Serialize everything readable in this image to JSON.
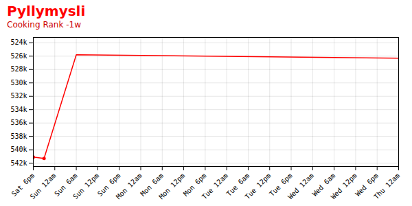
{
  "chart_data": {
    "type": "line",
    "title": "Pyllymysli",
    "subtitle": "Cooking Rank -1w",
    "series": [
      {
        "type": "line",
        "color": "#ff0000",
        "x": [
          0,
          0.5,
          2,
          17
        ],
        "values": [
          541100,
          541300,
          525800,
          526300
        ]
      },
      {
        "type": "scatter",
        "marker": "o",
        "color": "#ff0000",
        "x": [
          0,
          0.5
        ],
        "values": [
          541100,
          541300
        ]
      }
    ],
    "xlim": [
      0,
      17
    ],
    "xticks": [
      {
        "value": 0,
        "label": "Sat 6pm"
      },
      {
        "value": 1,
        "label": "Sun 12am"
      },
      {
        "value": 2,
        "label": "Sun 6am"
      },
      {
        "value": 3,
        "label": "Sun 12pm"
      },
      {
        "value": 4,
        "label": "Sun 6pm"
      },
      {
        "value": 5,
        "label": "Mon 12am"
      },
      {
        "value": 6,
        "label": "Mon 6am"
      },
      {
        "value": 7,
        "label": "Mon 12pm"
      },
      {
        "value": 8,
        "label": "Mon 6pm"
      },
      {
        "value": 9,
        "label": "Tue 12am"
      },
      {
        "value": 10,
        "label": "Tue 6am"
      },
      {
        "value": 11,
        "label": "Tue 12pm"
      },
      {
        "value": 12,
        "label": "Tue 6pm"
      },
      {
        "value": 13,
        "label": "Wed 12am"
      },
      {
        "value": 14,
        "label": "Wed 6am"
      },
      {
        "value": 15,
        "label": "Wed 12pm"
      },
      {
        "value": 16,
        "label": "Wed 6pm"
      },
      {
        "value": 17,
        "label": "Thu 12am"
      }
    ],
    "ylim": [
      542500,
      523200
    ],
    "yticks": [
      {
        "value": 524000,
        "label": "524k"
      },
      {
        "value": 526000,
        "label": "526k"
      },
      {
        "value": 528000,
        "label": "528k"
      },
      {
        "value": 530000,
        "label": "530k"
      },
      {
        "value": 532000,
        "label": "532k"
      },
      {
        "value": 534000,
        "label": "534k"
      },
      {
        "value": 536000,
        "label": "536k"
      },
      {
        "value": 538000,
        "label": "538k"
      },
      {
        "value": 540000,
        "label": "540k"
      },
      {
        "value": 542000,
        "label": "542k"
      }
    ],
    "grid": true
  }
}
